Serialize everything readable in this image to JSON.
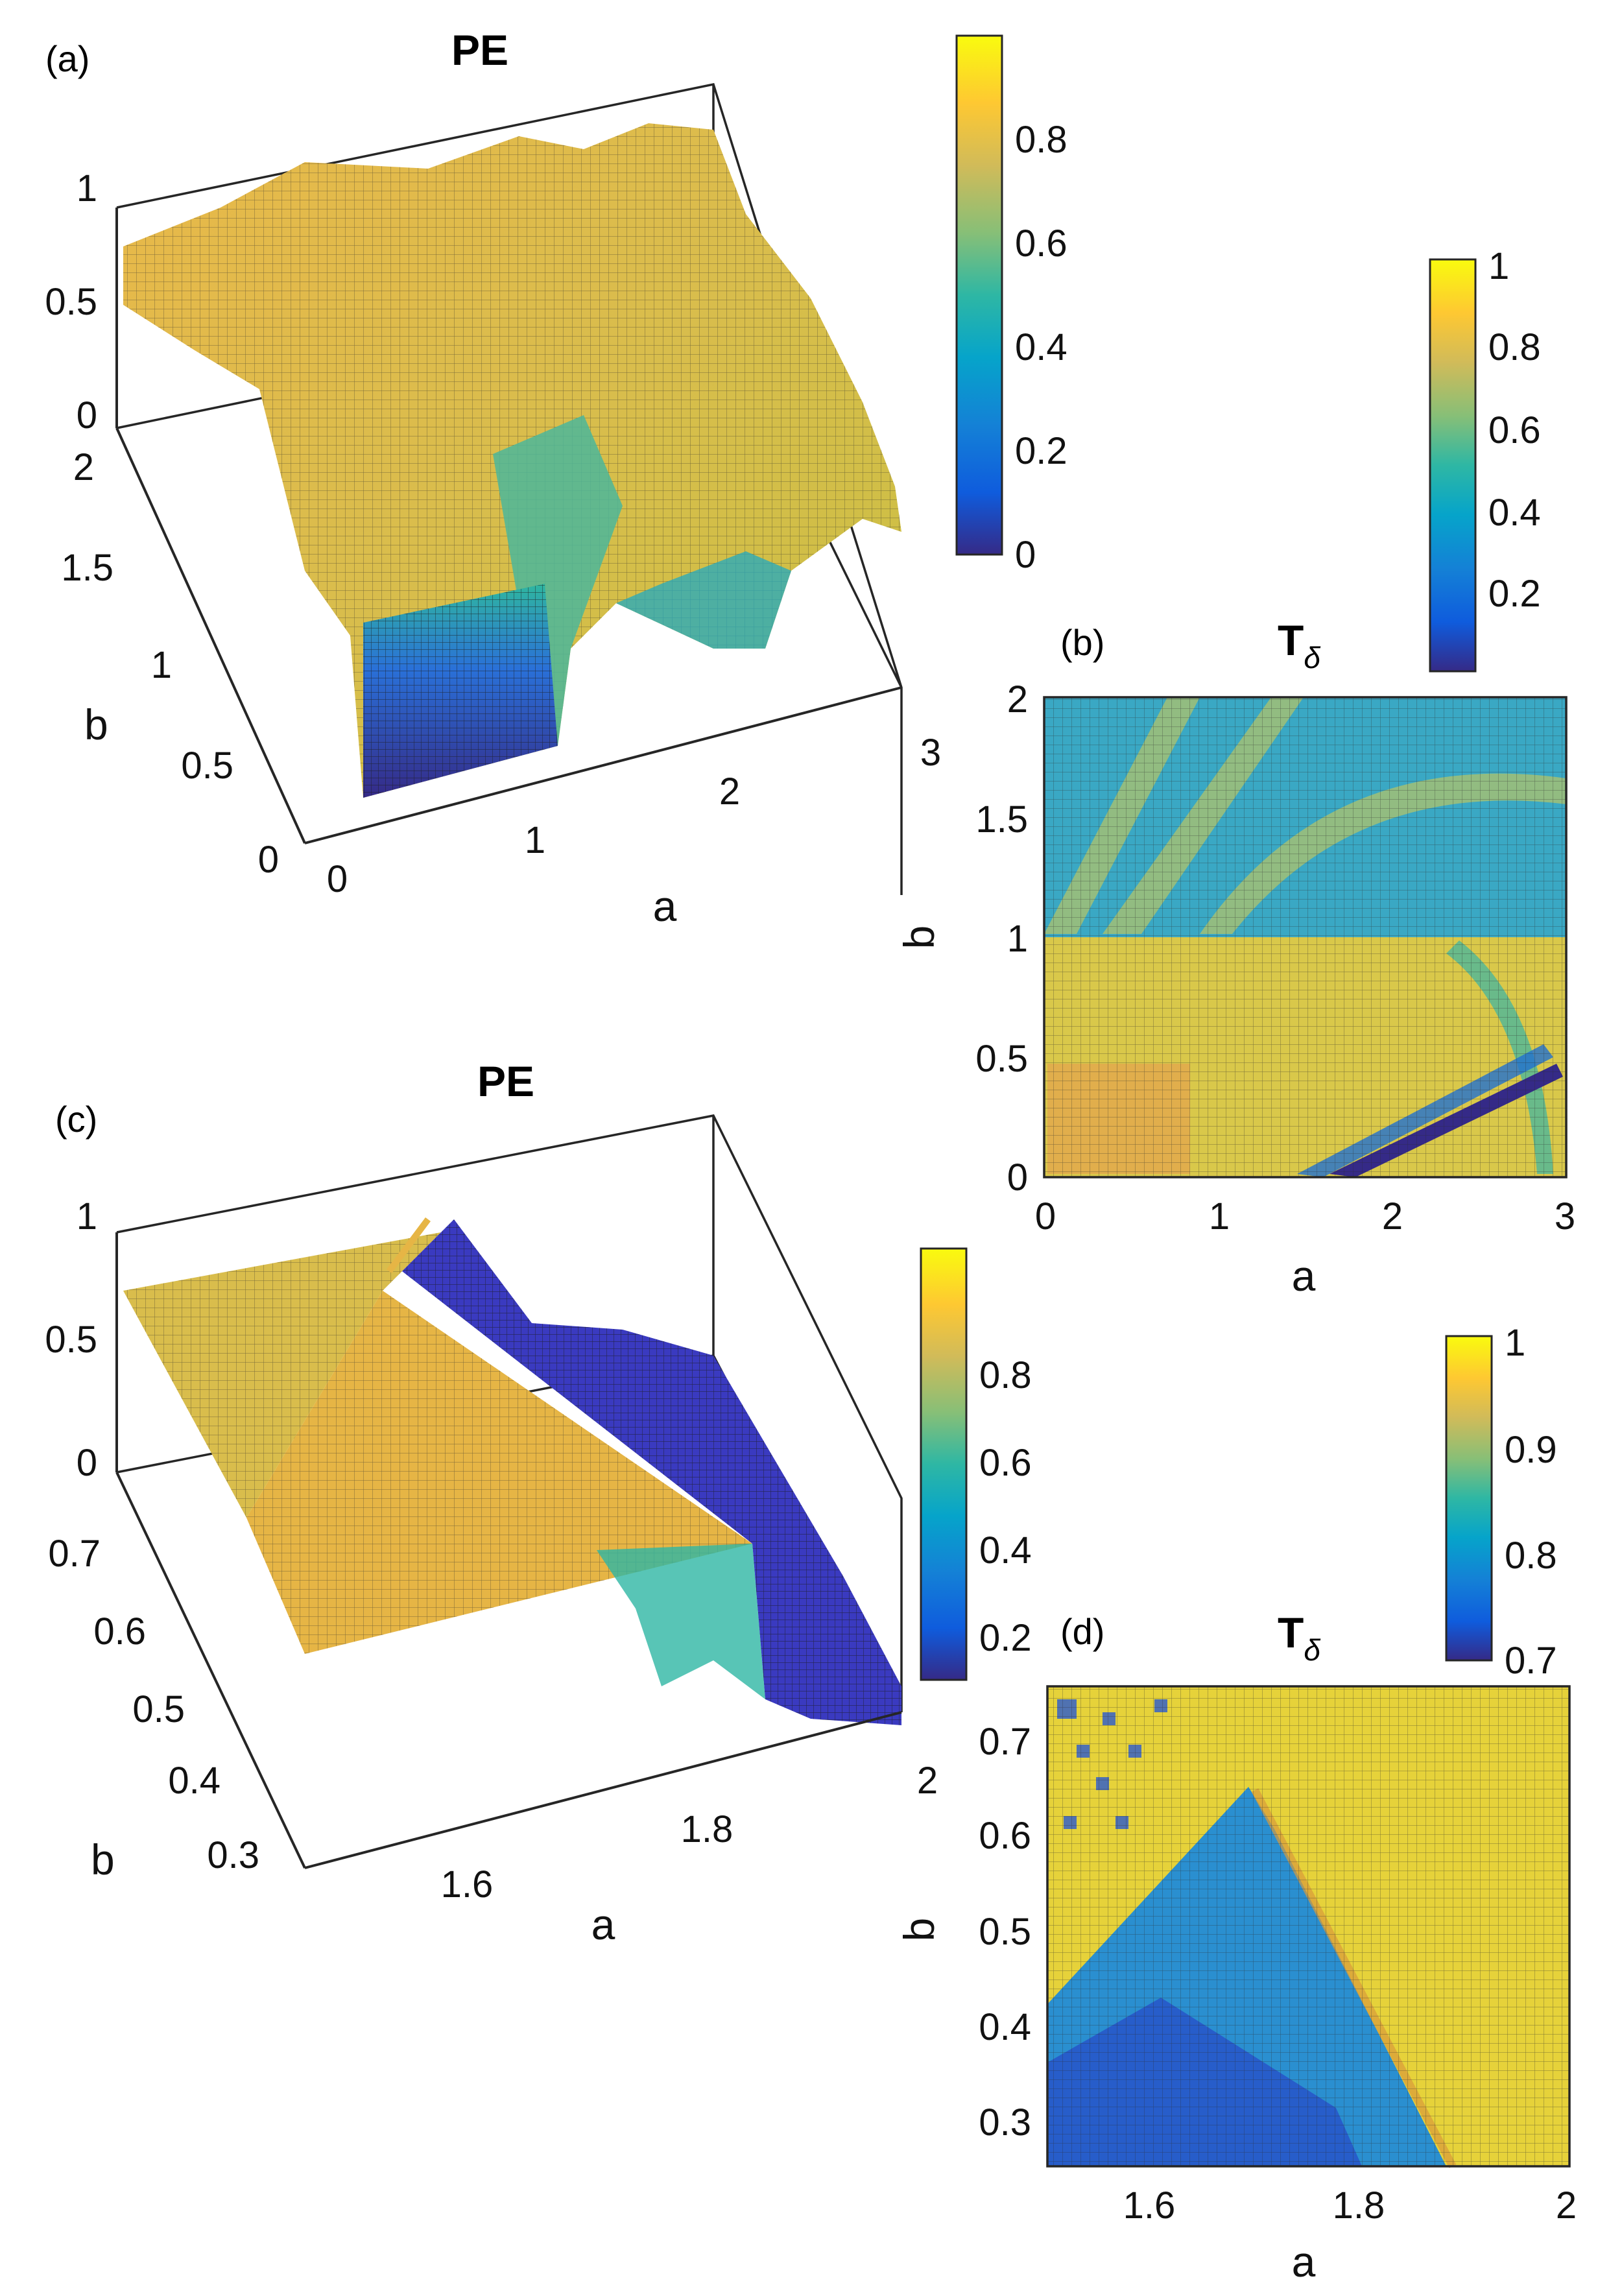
{
  "chart_data": [
    {
      "panel": "(a)",
      "type": "surface",
      "title": "PE",
      "xlabel": "a",
      "ylabel": "b",
      "xlim": [
        0,
        3
      ],
      "ylim": [
        0,
        2
      ],
      "zlim": [
        0,
        1
      ],
      "xticks": [
        "0",
        "1",
        "2",
        "3"
      ],
      "yticks": [
        "0",
        "0.5",
        "1",
        "1.5",
        "2"
      ],
      "zticks": [
        "0",
        "0.5",
        "1"
      ],
      "colorbar": {
        "range": [
          0,
          1
        ],
        "ticks": [
          "0",
          "0.2",
          "0.4",
          "0.6",
          "0.8"
        ]
      },
      "description_regions": [
        {
          "region": "a<1.2, b<1",
          "value": 0.75
        },
        {
          "region": "near a≈0.3-1.3, b<0.3",
          "value": 0.02
        },
        {
          "region": "b>1",
          "value": 0.85
        },
        {
          "region": "a>1.5, b<1",
          "value": 0.55
        }
      ]
    },
    {
      "panel": "(b)",
      "type": "heatmap",
      "title": "T",
      "title_sub": "δ",
      "xlabel": "a",
      "ylabel": "b",
      "xlim": [
        0,
        3
      ],
      "ylim": [
        0,
        2
      ],
      "xticks": [
        "0",
        "1",
        "2",
        "3"
      ],
      "yticks": [
        "0",
        "0.5",
        "1",
        "1.5",
        "2"
      ],
      "colorbar": {
        "range": [
          0,
          1
        ],
        "ticks": [
          "0.2",
          "0.4",
          "0.6",
          "0.8",
          "1"
        ]
      }
    },
    {
      "panel": "(c)",
      "type": "surface",
      "title": "PE",
      "xlabel": "a",
      "ylabel": "b",
      "xlim": [
        1.5,
        2
      ],
      "ylim": [
        0.25,
        0.75
      ],
      "zlim": [
        0,
        1
      ],
      "xticks": [
        "1.6",
        "1.8",
        "2"
      ],
      "yticks": [
        "0.3",
        "0.4",
        "0.5",
        "0.6",
        "0.7"
      ],
      "zticks": [
        "0",
        "0.5",
        "1"
      ],
      "colorbar": {
        "range": [
          0,
          1
        ],
        "ticks": [
          "0.2",
          "0.4",
          "0.6",
          "0.8"
        ]
      }
    },
    {
      "panel": "(d)",
      "type": "heatmap",
      "title": "T",
      "title_sub": "δ",
      "xlabel": "a",
      "ylabel": "b",
      "xlim": [
        1.5,
        2
      ],
      "ylim": [
        0.25,
        0.75
      ],
      "xticks": [
        "1.6",
        "1.8",
        "2"
      ],
      "yticks": [
        "0.3",
        "0.4",
        "0.5",
        "0.6",
        "0.7"
      ],
      "colorbar": {
        "range": [
          0.7,
          1
        ],
        "ticks": [
          "0.7",
          "0.8",
          "0.9",
          "1"
        ]
      }
    }
  ]
}
